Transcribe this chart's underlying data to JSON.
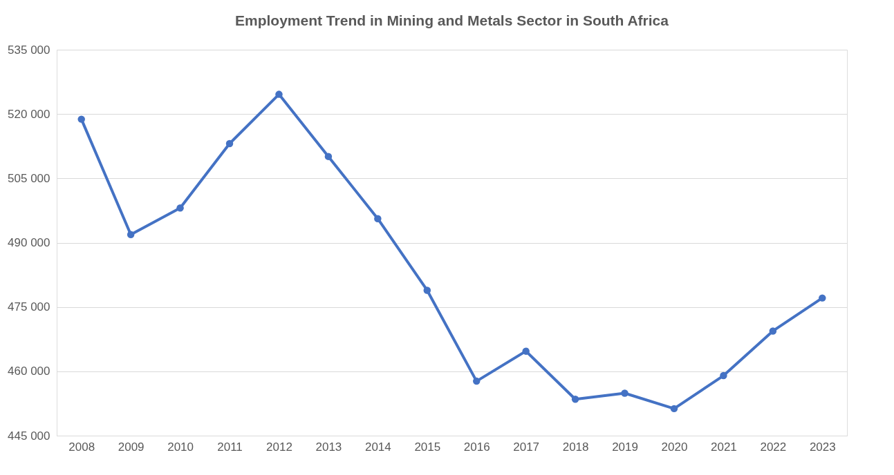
{
  "chart_data": {
    "type": "line",
    "title": "Employment Trend in Mining and Metals Sector in South Africa",
    "categories": [
      "2008",
      "2009",
      "2010",
      "2011",
      "2012",
      "2013",
      "2014",
      "2015",
      "2016",
      "2017",
      "2018",
      "2019",
      "2020",
      "2021",
      "2022",
      "2023"
    ],
    "series": [
      {
        "color": "#4472c4",
        "values": [
          518800,
          491900,
          498100,
          513100,
          524600,
          510100,
          495600,
          478900,
          457700,
          464700,
          453500,
          454900,
          451300,
          459000,
          469400,
          477100
        ]
      }
    ],
    "ylim": [
      445000,
      535000
    ],
    "yticks": [
      {
        "value": 445000,
        "label": "445 000"
      },
      {
        "value": 460000,
        "label": "460 000"
      },
      {
        "value": 475000,
        "label": "475 000"
      },
      {
        "value": 490000,
        "label": "490 000"
      },
      {
        "value": 505000,
        "label": "505 000"
      },
      {
        "value": 520000,
        "label": "520 000"
      },
      {
        "value": 535000,
        "label": "535 000"
      }
    ],
    "grid": "y",
    "marker": "circle",
    "line_style": "solid"
  }
}
